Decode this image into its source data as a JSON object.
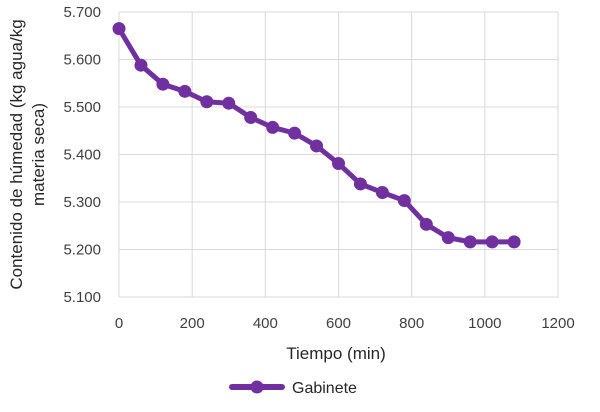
{
  "chart_data": {
    "type": "line",
    "title": "",
    "xlabel": "Tiempo (min)",
    "ylabel": "Contenido de húmedad (kg agua/kg materia seca)",
    "xlim": [
      0,
      1200
    ],
    "ylim": [
      5.1,
      5.7
    ],
    "x_ticks": [
      "0",
      "200",
      "400",
      "600",
      "800",
      "1000",
      "1200"
    ],
    "y_ticks": [
      "5.100",
      "5.200",
      "5.300",
      "5.400",
      "5.500",
      "5.600",
      "5.700"
    ],
    "grid": true,
    "legend_position": "bottom",
    "series": [
      {
        "name": "Gabinete",
        "color": "#7030A0",
        "x": [
          0,
          60,
          120,
          180,
          240,
          300,
          360,
          420,
          480,
          540,
          600,
          660,
          720,
          780,
          840,
          900,
          960,
          1020,
          1080
        ],
        "y": [
          5.665,
          5.588,
          5.548,
          5.533,
          5.511,
          5.508,
          5.478,
          5.457,
          5.445,
          5.418,
          5.381,
          5.338,
          5.32,
          5.303,
          5.253,
          5.225,
          5.216,
          5.216,
          5.216
        ]
      }
    ]
  }
}
